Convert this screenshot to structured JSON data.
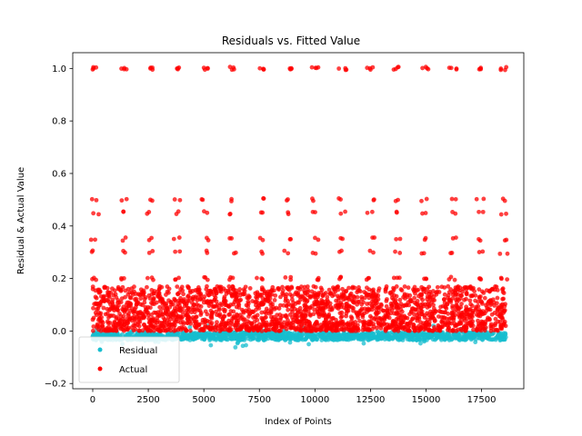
{
  "chart_data": {
    "type": "scatter",
    "title": "Residuals vs. Fitted Value",
    "xlabel": "Index of Points",
    "ylabel": "Residual & Actual Value",
    "xlim": [
      -900,
      19400
    ],
    "ylim": [
      -0.22,
      1.06
    ],
    "x_ticks": [
      0,
      2500,
      5000,
      7500,
      10000,
      12500,
      15000,
      17500
    ],
    "x_tick_labels": [
      "0",
      "2500",
      "5000",
      "7500",
      "10000",
      "12500",
      "15000",
      "17500"
    ],
    "y_ticks": [
      -0.2,
      0.0,
      0.2,
      0.4,
      0.6,
      0.8,
      1.0
    ],
    "y_tick_labels": [
      "−0.2",
      "0.0",
      "0.2",
      "0.4",
      "0.6",
      "0.8",
      "1.0"
    ],
    "grid": false,
    "legend_position": "bottom-left",
    "n_points": 18600,
    "series": [
      {
        "name": "Residual",
        "color": "#17becf",
        "description_values": {
          "center": -0.02,
          "range": [
            -0.04,
            0.03
          ]
        }
      },
      {
        "name": "Actual",
        "color": "#ff0000",
        "dense_band_range": [
          0.0,
          0.17
        ],
        "level_values": [
          0.2,
          0.3,
          0.35,
          0.45,
          0.5,
          1.0
        ],
        "cluster_x_centers": [
          100,
          1350,
          2550,
          3800,
          5050,
          6300,
          7550,
          8800,
          10000,
          11250,
          12500,
          13700,
          14950,
          16200,
          17450,
          18500
        ]
      }
    ]
  }
}
